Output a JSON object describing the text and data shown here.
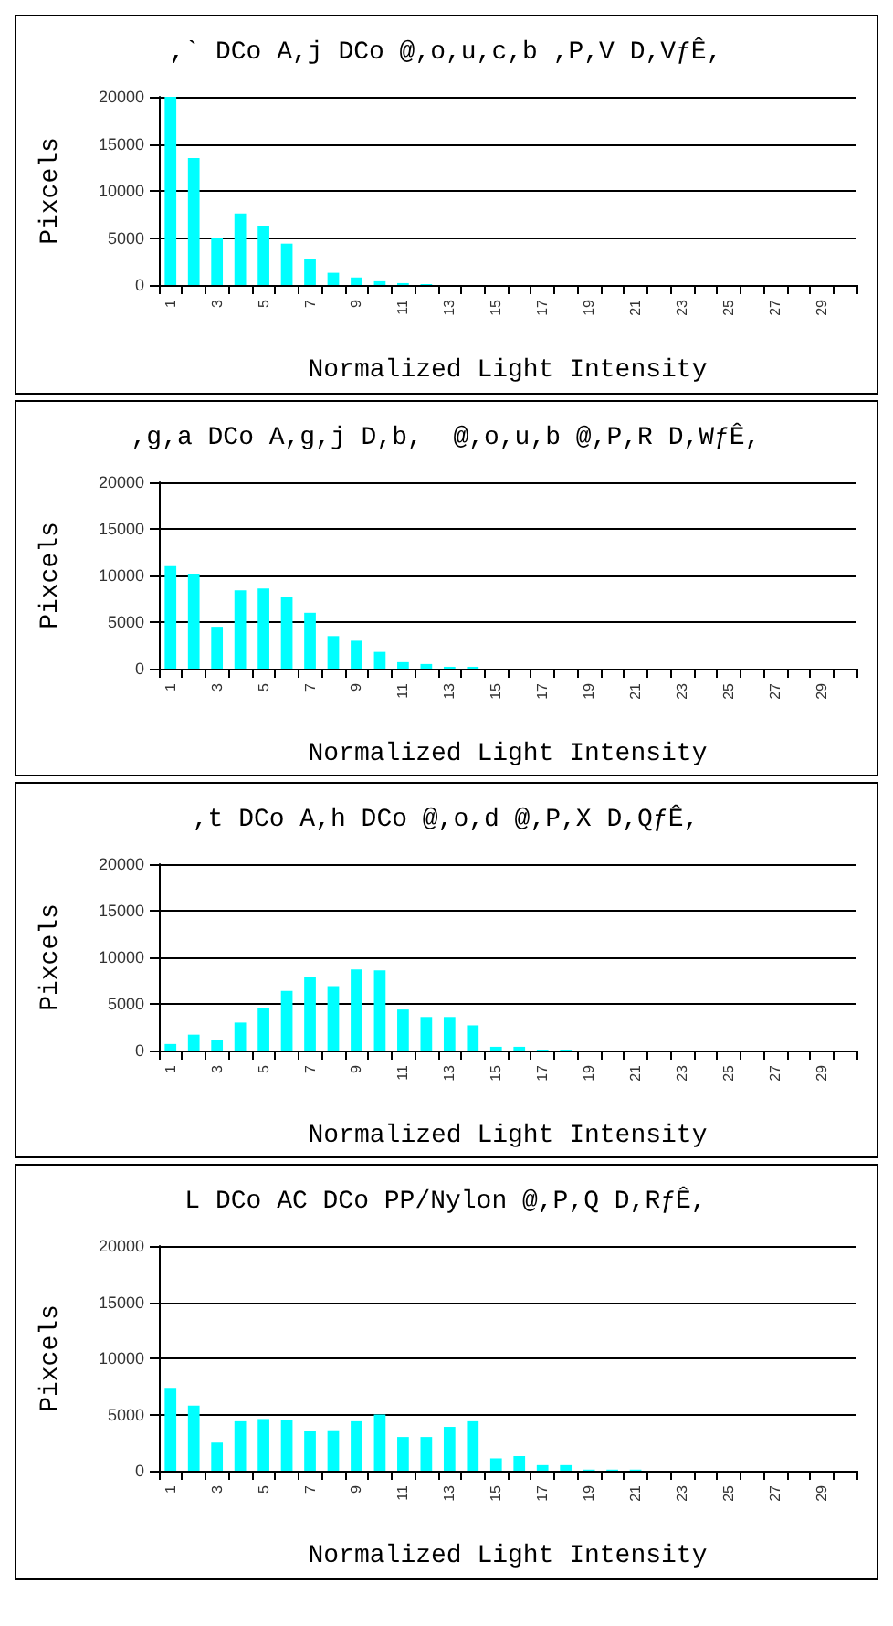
{
  "chart_data": [
    {
      "type": "bar",
      "title": ",` DCo A,j DCo @,o,u,c,b ,P,V D,VƒÊ,",
      "xlabel": "Normalized Light Intensity",
      "ylabel": "Pixcels",
      "categories": [
        "1",
        null,
        "3",
        null,
        "5",
        null,
        "7",
        null,
        "9",
        null,
        "11",
        null,
        "13",
        null,
        "15",
        null,
        "17",
        null,
        "19",
        null,
        "21",
        null,
        "23",
        null,
        "25",
        null,
        "27",
        null,
        "29",
        null
      ],
      "values": [
        20000,
        13500,
        5000,
        7600,
        6300,
        4400,
        2800,
        1300,
        800,
        400,
        200,
        100,
        0,
        0,
        0,
        0,
        0,
        0,
        0,
        0,
        0,
        0,
        0,
        0,
        0,
        0,
        0,
        0,
        0,
        0
      ],
      "color": "#00ffff",
      "ylim": [
        0,
        20000
      ],
      "yticks": [
        0,
        5000,
        10000,
        15000,
        20000
      ],
      "grid": "y"
    },
    {
      "type": "bar",
      "title": ",g,a DCo A,g,j D,b,  @,o,u,b @,P,R D,WƒÊ,",
      "xlabel": "Normalized Light Intensity",
      "ylabel": "Pixcels",
      "categories": [
        "1",
        null,
        "3",
        null,
        "5",
        null,
        "7",
        null,
        "9",
        null,
        "11",
        null,
        "13",
        null,
        "15",
        null,
        "17",
        null,
        "19",
        null,
        "21",
        null,
        "23",
        null,
        "25",
        null,
        "27",
        null,
        "29",
        null
      ],
      "values": [
        11000,
        10200,
        4500,
        8400,
        8600,
        7700,
        6000,
        3500,
        3000,
        1800,
        700,
        500,
        200,
        200,
        0,
        0,
        0,
        0,
        0,
        0,
        0,
        0,
        0,
        0,
        0,
        0,
        0,
        0,
        0,
        0
      ],
      "color": "#00ffff",
      "ylim": [
        0,
        20000
      ],
      "yticks": [
        0,
        5000,
        10000,
        15000,
        20000
      ],
      "grid": "y"
    },
    {
      "type": "bar",
      "title": ",t DCo A,h DCo @,o,d @,P,X D,QƒÊ,",
      "xlabel": "Normalized Light Intensity",
      "ylabel": "Pixcels",
      "categories": [
        "1",
        null,
        "3",
        null,
        "5",
        null,
        "7",
        null,
        "9",
        null,
        "11",
        null,
        "13",
        null,
        "15",
        null,
        "17",
        null,
        "19",
        null,
        "21",
        null,
        "23",
        null,
        "25",
        null,
        "27",
        null,
        "29",
        null
      ],
      "values": [
        700,
        1700,
        1100,
        3000,
        4600,
        6400,
        7900,
        6900,
        8700,
        8600,
        4400,
        3600,
        3600,
        2700,
        400,
        400,
        100,
        100,
        0,
        0,
        0,
        0,
        0,
        0,
        0,
        0,
        0,
        0,
        0,
        0
      ],
      "color": "#00ffff",
      "ylim": [
        0,
        20000
      ],
      "yticks": [
        0,
        5000,
        10000,
        15000,
        20000
      ],
      "grid": "y"
    },
    {
      "type": "bar",
      "title": "L DCo AC DCo PP/Nylon @,P,Q D,RƒÊ,",
      "xlabel": "Normalized Light Intensity",
      "ylabel": "Pixcels",
      "categories": [
        "1",
        null,
        "3",
        null,
        "5",
        null,
        "7",
        null,
        "9",
        null,
        "11",
        null,
        "13",
        null,
        "15",
        null,
        "17",
        null,
        "19",
        null,
        "21",
        null,
        "23",
        null,
        "25",
        null,
        "27",
        null,
        "29",
        null
      ],
      "values": [
        7300,
        5800,
        2500,
        4400,
        4600,
        4500,
        3500,
        3600,
        4400,
        5000,
        3000,
        3000,
        3900,
        4400,
        1100,
        1300,
        500,
        500,
        100,
        100,
        100,
        0,
        0,
        0,
        0,
        0,
        0,
        0,
        0,
        0
      ],
      "color": "#00ffff",
      "ylim": [
        0,
        20000
      ],
      "yticks": [
        0,
        5000,
        10000,
        15000,
        20000
      ],
      "grid": "y"
    }
  ]
}
